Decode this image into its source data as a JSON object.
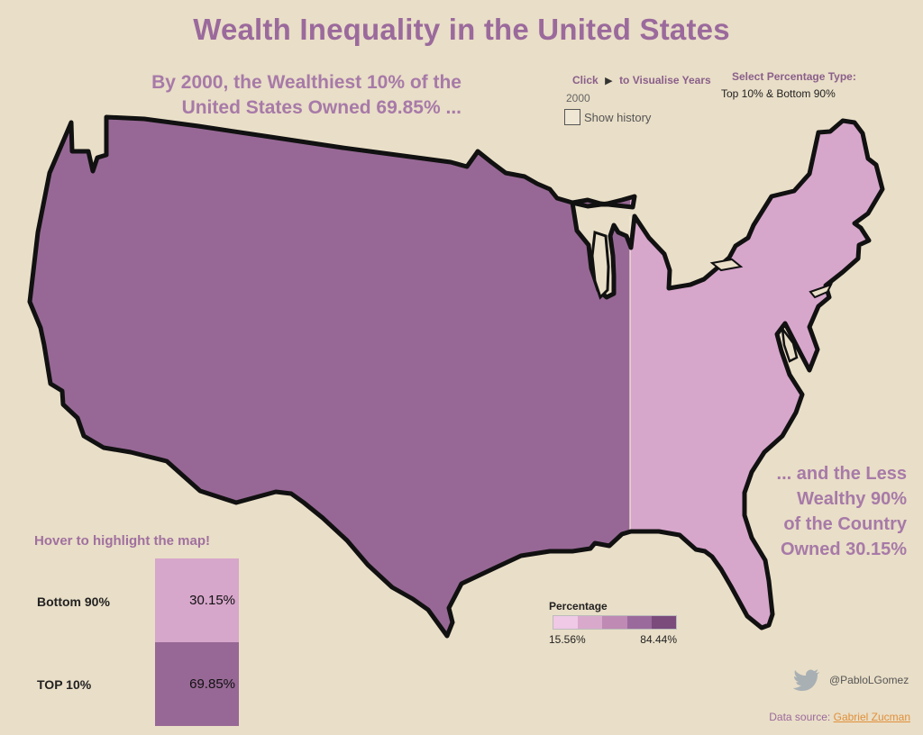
{
  "title": "Wealth Inequality in the United States",
  "headline": {
    "line1": "By 2000, the Wealthiest 10% of the",
    "line2": "United States Owned 69.85% ..."
  },
  "year_control": {
    "prefix": "Click",
    "suffix": "to Visualise Years",
    "year": "2000",
    "history_label": "Show history"
  },
  "percentage_type": {
    "label": "Select Percentage Type:",
    "value": "Top 10% & Bottom 90%"
  },
  "subline": {
    "line1": "... and the Less",
    "line2": "Wealthy 90%",
    "line3": "of the Country",
    "line4": "Owned 30.15%"
  },
  "breakdown": {
    "title": "Hover to highlight the map!",
    "rows": [
      {
        "label": "Bottom 90%",
        "value": "30.15%",
        "color": "#d7a6cb"
      },
      {
        "label": "TOP 10%",
        "value": "69.85%",
        "color": "#976895"
      }
    ]
  },
  "map_colors": {
    "top": "#976895",
    "bottom": "#d7a6cb",
    "outline": "#111111"
  },
  "legend": {
    "label": "Percentage",
    "min": "15.56%",
    "max": "84.44%",
    "ramp": [
      "#efc9e6",
      "#d9a9cc",
      "#bf8ab3",
      "#9b6a9c",
      "#7a4b7b"
    ]
  },
  "twitter_handle": "@PabloLGomez",
  "source": {
    "prefix": "Data source:",
    "link": "Gabriel Zucman"
  }
}
